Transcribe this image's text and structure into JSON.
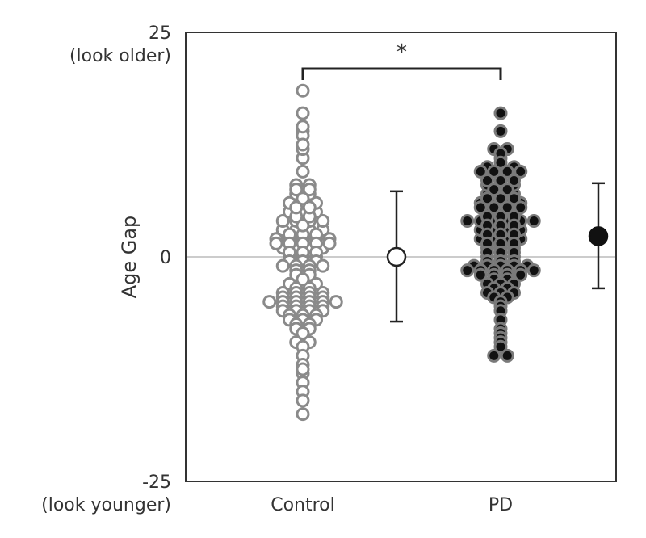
{
  "chart_data": {
    "type": "scatter",
    "title": "",
    "xlabel": "",
    "ylabel": "Age Gap",
    "ylim": [
      -25,
      25
    ],
    "y_ticks": [
      {
        "value": 25,
        "label": "25",
        "sublabel": "(look older)"
      },
      {
        "value": 0,
        "label": "0",
        "sublabel": ""
      },
      {
        "value": -25,
        "label": "-25",
        "sublabel": "(look younger)"
      }
    ],
    "categories": [
      "Control",
      "PD"
    ],
    "significance": "*",
    "colors": {
      "control_stroke": "#8a8a8a",
      "control_fill": "#ffffff",
      "pd_fill": "#111111",
      "pd_stroke": "#7a7a7a",
      "zero_line": "#cccccc",
      "axis": "#333333"
    },
    "series": [
      {
        "name": "Control",
        "marker": "open-circle",
        "mean": 0.0,
        "err_low": -7.2,
        "err_high": 7.3,
        "values": [
          18.5,
          16,
          14,
          13.5,
          14.5,
          12,
          12.5,
          11,
          9.5,
          8,
          7.5,
          7,
          6,
          6,
          5,
          5,
          4.5,
          4,
          4,
          3,
          3,
          2.5,
          2,
          2,
          1.5,
          1.5,
          1,
          1,
          0.5,
          0.5,
          0,
          -0.5,
          -1,
          -1,
          -1.5,
          -2,
          -3,
          -3.5,
          -4,
          -4,
          -4.5,
          -4.5,
          -5,
          -5,
          -5,
          -5.5,
          -5.5,
          -6,
          -6,
          -6.5,
          -7,
          -7,
          -7.5,
          -8,
          -8,
          -9,
          -9.5,
          -10,
          -11,
          -12,
          -13,
          -14,
          -15,
          -16,
          -17.5,
          7,
          6.5,
          5.5,
          5,
          4,
          3.5,
          2.5,
          2,
          1.5,
          1,
          0.5,
          0,
          -0.5,
          -1.5,
          -2,
          -3,
          -3.5,
          -4.5,
          -5,
          -5.5,
          -6,
          -6.5,
          -7,
          3,
          2.5,
          2,
          1.5,
          -4,
          -4.5,
          -5,
          -5.5,
          2,
          1.5,
          -5,
          -6,
          8,
          7.5,
          6,
          5.5,
          4.5,
          4,
          3,
          -0.5,
          -1,
          -2.5,
          -3,
          -4,
          -6.5,
          -7.5,
          -8.5,
          -9.5,
          -12.5,
          1,
          0,
          -1
        ]
      },
      {
        "name": "PD",
        "marker": "filled-circle",
        "mean": 2.3,
        "err_low": -3.5,
        "err_high": 8.2,
        "values": [
          16,
          14,
          12,
          12,
          11.5,
          11,
          10.5,
          10,
          10,
          9.5,
          9,
          9,
          8.5,
          8.5,
          8,
          8,
          7.5,
          7,
          7,
          6.5,
          6.5,
          6,
          6,
          5.5,
          5.5,
          5,
          5,
          4.5,
          4.5,
          4,
          4,
          4,
          3.5,
          3.5,
          3,
          3,
          2.5,
          2.5,
          2,
          2,
          1.5,
          1.5,
          1,
          1,
          0.5,
          0.5,
          0,
          0,
          -0.5,
          -0.5,
          -1,
          -1,
          -1,
          -1.5,
          -1.5,
          -1.5,
          -2,
          -2,
          -2.5,
          -3,
          -3,
          -3.5,
          -4,
          -4,
          -4.5,
          -5,
          -5.5,
          -6,
          -7,
          -8,
          -8.5,
          -9,
          -9.5,
          -10,
          -11,
          -11,
          10,
          9.5,
          9,
          8,
          7.5,
          6.5,
          6,
          5,
          4.5,
          4,
          3,
          2.5,
          2,
          1,
          0.5,
          -0.5,
          -1,
          -2,
          -2.5,
          -3,
          -4,
          -4.5,
          9.5,
          8.5,
          7,
          6,
          5.5,
          3.5,
          2,
          1.5,
          0,
          -1.5,
          -2,
          -3.5,
          9.5,
          5.5,
          4,
          3,
          -1.5,
          -1,
          4,
          -1.5
        ]
      }
    ]
  }
}
